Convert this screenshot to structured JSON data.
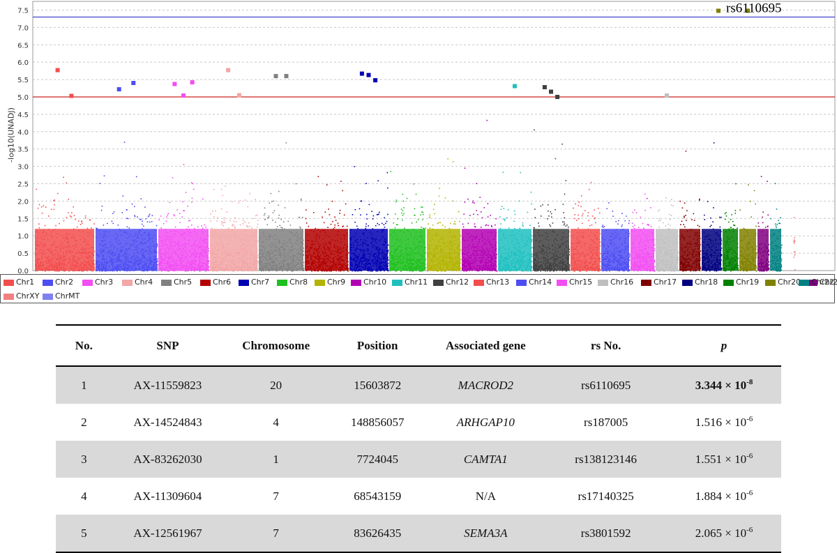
{
  "chart_data": {
    "type": "scatter",
    "subtype": "manhattan",
    "ylabel": "-log10(UNADJ)",
    "ylim": [
      0,
      7.75
    ],
    "yticks": [
      "0.0",
      "0.5",
      "1.0",
      "1.5",
      "2.0",
      "2.5",
      "3.0",
      "3.5",
      "4.0",
      "4.5",
      "5.0",
      "5.5",
      "6.0",
      "6.5",
      "7.0",
      "7.5"
    ],
    "grid": true,
    "thresholds": [
      {
        "value": 7.3,
        "color": "#3333cc"
      },
      {
        "value": 5.0,
        "color": "#cc2222"
      }
    ],
    "legend_position": "bottom",
    "series": [
      {
        "name": "Chr1",
        "color": "#f24e4e"
      },
      {
        "name": "Chr2",
        "color": "#4d4df2"
      },
      {
        "name": "Chr3",
        "color": "#f24ef2"
      },
      {
        "name": "Chr4",
        "color": "#f2a6a6"
      },
      {
        "name": "Chr5",
        "color": "#808080"
      },
      {
        "name": "Chr6",
        "color": "#b30000"
      },
      {
        "name": "Chr7",
        "color": "#0000b3"
      },
      {
        "name": "Chr8",
        "color": "#1fbf1f"
      },
      {
        "name": "Chr9",
        "color": "#b3b300"
      },
      {
        "name": "Chr10",
        "color": "#b300b3"
      },
      {
        "name": "Chr11",
        "color": "#1fbfbf"
      },
      {
        "name": "Chr12",
        "color": "#404040"
      },
      {
        "name": "Chr13",
        "color": "#f24e4e"
      },
      {
        "name": "Chr14",
        "color": "#4d4df2"
      },
      {
        "name": "Chr15",
        "color": "#f24ef2"
      },
      {
        "name": "Chr16",
        "color": "#bfbfbf"
      },
      {
        "name": "Chr17",
        "color": "#800000"
      },
      {
        "name": "Chr18",
        "color": "#000080"
      },
      {
        "name": "Chr19",
        "color": "#008000"
      },
      {
        "name": "Chr20",
        "color": "#808000"
      },
      {
        "name": "Chr21",
        "color": "#800080"
      },
      {
        "name": "Chr22",
        "color": "#008080"
      },
      {
        "name": "ChrXY",
        "color": "#f28080"
      },
      {
        "name": "ChrMT",
        "color": "#8080f2"
      }
    ],
    "annotation": {
      "label": "rs6110695",
      "chromosome": "Chr20",
      "value": 7.48
    },
    "top_points": [
      {
        "chromosome": "Chr1",
        "values": [
          5.77,
          5.03
        ]
      },
      {
        "chromosome": "Chr2",
        "values": [
          5.22,
          5.4
        ]
      },
      {
        "chromosome": "Chr3",
        "values": [
          5.37,
          5.04,
          5.42
        ]
      },
      {
        "chromosome": "Chr4",
        "values": [
          5.77,
          5.05
        ]
      },
      {
        "chromosome": "Chr5",
        "values": [
          5.6,
          5.6
        ]
      },
      {
        "chromosome": "Chr7",
        "values": [
          5.67,
          5.63,
          5.48
        ]
      },
      {
        "chromosome": "Chr11",
        "values": [
          5.31
        ]
      },
      {
        "chromosome": "Chr12",
        "values": [
          5.28,
          5.15,
          5.0
        ]
      },
      {
        "chromosome": "Chr16",
        "values": [
          5.04
        ]
      },
      {
        "chromosome": "Chr20",
        "values": [
          7.48
        ]
      }
    ]
  },
  "table": {
    "headers": {
      "no": "No.",
      "snp": "SNP",
      "chromosome": "Chromosome",
      "position": "Position",
      "gene": "Associated gene",
      "rs": "rs No.",
      "p": "p"
    },
    "rows": [
      {
        "no": "1",
        "snp": "AX-11559823",
        "chromosome": "20",
        "position": "15603872",
        "gene": "MACROD2",
        "rs": "rs6110695",
        "p_base": "3.344 × 10",
        "p_exp": "-8"
      },
      {
        "no": "2",
        "snp": "AX-14524843",
        "chromosome": "4",
        "position": "148856057",
        "gene": "ARHGAP10",
        "rs": "rs187005",
        "p_base": "1.516 × 10",
        "p_exp": "-6"
      },
      {
        "no": "3",
        "snp": "AX-83262030",
        "chromosome": "1",
        "position": "7724045",
        "gene": "CAMTA1",
        "rs": "rs138123146",
        "p_base": "1.551 × 10",
        "p_exp": "-6"
      },
      {
        "no": "4",
        "snp": "AX-11309604",
        "chromosome": "7",
        "position": "68543159",
        "gene": "N/A",
        "rs": "rs17140325",
        "p_base": "1.884 × 10",
        "p_exp": "-6"
      },
      {
        "no": "5",
        "snp": "AX-12561967",
        "chromosome": "7",
        "position": "83626435",
        "gene": "SEMA3A",
        "rs": "rs3801592",
        "p_base": "2.065 × 10",
        "p_exp": "-6"
      }
    ]
  }
}
